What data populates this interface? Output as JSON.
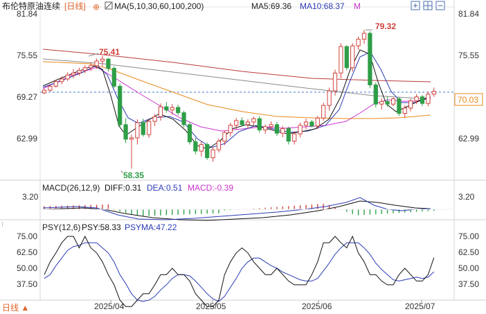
{
  "header": {
    "title": "布伦特原油连续",
    "period_tag": "[日线]",
    "ma_label": "MA(5,10,30,60,100,200)",
    "ma5_label": "MA5:69.36",
    "ma10_label": "MA10:68.37",
    "m_label": "M"
  },
  "price_panel": {
    "right_ticks": [
      "81.84",
      "75.55",
      "69.27",
      "62.99"
    ],
    "left_ticks": [
      "81.84",
      "75.55",
      "69.27",
      "62.99"
    ],
    "current_price": "70.03",
    "high_label": "79.32",
    "mid_high_label": "75.41",
    "low_label": "58.35"
  },
  "macd_panel": {
    "title": "MACD(26,12,9)",
    "diff_label": "DIFF:0.31",
    "dea_label": "DEA:0.51",
    "macd_label": "MACD:-0.39",
    "tick_right": "3.20",
    "tick_left": "3.20"
  },
  "psy_panel": {
    "title": "PSY(12,6)",
    "psy_label": "PSY:58.33",
    "psyma_label": "PSYMA:47.22",
    "ticks": [
      "75.00",
      "62.50",
      "50.00",
      "37.50"
    ]
  },
  "footer": {
    "period_button": "日线 ▲",
    "dates": [
      "2025/04",
      "2025/05",
      "2025/06",
      "2025/07"
    ]
  },
  "colors": {
    "up": "#d0413b",
    "down": "#2e9e47",
    "ma5": "#111111",
    "ma10": "#2b3bb5",
    "ma30": "#cc33cc",
    "ma60": "#e88a1a",
    "ma100": "#8a8a8a",
    "ma200": "#b83a3a",
    "dash": "#3a78c8"
  },
  "chart_data": {
    "type": "candlestick",
    "price_axis": [
      58.35,
      81.84
    ],
    "candles": [
      [
        69.8,
        69.6,
        70.4,
        70.2
      ],
      [
        70.2,
        70.0,
        71.0,
        70.8
      ],
      [
        70.8,
        70.6,
        71.8,
        71.5
      ],
      [
        71.5,
        71.1,
        72.3,
        71.9
      ],
      [
        71.9,
        71.6,
        72.9,
        72.5
      ],
      [
        72.5,
        72.0,
        73.4,
        72.8
      ],
      [
        72.8,
        72.4,
        73.6,
        73.2
      ],
      [
        73.2,
        72.8,
        74.0,
        73.6
      ],
      [
        73.6,
        73.1,
        74.4,
        73.9
      ],
      [
        73.9,
        73.4,
        75.0,
        74.6
      ],
      [
        74.6,
        73.8,
        75.41,
        74.9
      ],
      [
        74.9,
        73.0,
        75.1,
        73.5
      ],
      [
        73.5,
        70.5,
        73.8,
        70.8
      ],
      [
        70.8,
        64.5,
        71.2,
        65.0
      ],
      [
        65.0,
        62.2,
        66.0,
        62.8
      ],
      [
        62.8,
        58.35,
        63.5,
        63.0
      ],
      [
        63.0,
        62.0,
        65.8,
        65.3
      ],
      [
        65.3,
        63.2,
        65.9,
        63.5
      ],
      [
        63.5,
        63.0,
        65.9,
        65.5
      ],
      [
        65.5,
        64.8,
        66.6,
        66.2
      ],
      [
        66.2,
        65.6,
        68.2,
        67.7
      ],
      [
        67.7,
        66.8,
        68.4,
        67.2
      ],
      [
        67.2,
        66.5,
        68.1,
        67.6
      ],
      [
        67.6,
        66.4,
        68.0,
        66.8
      ],
      [
        66.8,
        64.6,
        67.1,
        65.0
      ],
      [
        65.0,
        62.0,
        65.3,
        62.4
      ],
      [
        62.4,
        60.5,
        63.0,
        61.0
      ],
      [
        61.0,
        60.2,
        62.5,
        62.0
      ],
      [
        62.0,
        59.7,
        62.3,
        60.0
      ],
      [
        60.0,
        59.4,
        61.6,
        61.2
      ],
      [
        61.2,
        60.8,
        62.9,
        62.5
      ],
      [
        62.5,
        61.9,
        64.1,
        63.8
      ],
      [
        63.8,
        63.2,
        65.3,
        64.9
      ],
      [
        64.9,
        64.3,
        66.0,
        65.6
      ],
      [
        65.6,
        64.8,
        66.1,
        65.0
      ],
      [
        65.0,
        64.4,
        65.8,
        65.4
      ],
      [
        65.4,
        64.9,
        66.2,
        65.9
      ],
      [
        65.9,
        63.8,
        66.3,
        64.2
      ],
      [
        64.2,
        63.6,
        65.0,
        64.7
      ],
      [
        64.7,
        64.2,
        65.5,
        65.0
      ],
      [
        65.0,
        63.3,
        65.4,
        63.7
      ],
      [
        63.7,
        63.1,
        64.8,
        64.4
      ],
      [
        64.4,
        62.0,
        64.7,
        62.5
      ],
      [
        62.5,
        62.0,
        64.0,
        63.6
      ],
      [
        63.6,
        63.1,
        65.3,
        64.9
      ],
      [
        64.9,
        64.3,
        65.9,
        65.4
      ],
      [
        65.4,
        64.6,
        65.7,
        64.8
      ],
      [
        64.8,
        64.3,
        66.3,
        66.0
      ],
      [
        66.0,
        65.6,
        68.3,
        67.9
      ],
      [
        67.9,
        67.1,
        70.6,
        70.1
      ],
      [
        70.1,
        69.4,
        73.3,
        72.8
      ],
      [
        72.8,
        72.0,
        77.3,
        76.8
      ],
      [
        76.8,
        73.2,
        77.0,
        73.6
      ],
      [
        73.6,
        73.0,
        77.3,
        76.9
      ],
      [
        76.9,
        76.3,
        78.3,
        77.9
      ],
      [
        77.9,
        77.2,
        79.32,
        78.8
      ],
      [
        78.8,
        70.5,
        79.1,
        71.0
      ],
      [
        71.0,
        67.6,
        71.4,
        68.1
      ],
      [
        68.1,
        67.3,
        69.0,
        68.5
      ],
      [
        68.5,
        67.7,
        69.3,
        68.1
      ],
      [
        68.1,
        67.8,
        69.1,
        68.9
      ],
      [
        68.9,
        66.3,
        69.2,
        66.7
      ],
      [
        66.7,
        66.0,
        67.9,
        67.5
      ],
      [
        67.5,
        67.0,
        68.9,
        68.6
      ],
      [
        68.6,
        68.1,
        69.6,
        69.2
      ],
      [
        69.2,
        67.8,
        69.5,
        68.2
      ],
      [
        68.2,
        67.8,
        70.0,
        69.6
      ],
      [
        69.6,
        69.2,
        70.6,
        70.03
      ]
    ],
    "macd_axis": [
      -3.2,
      3.2
    ],
    "psy_axis": [
      25,
      85
    ],
    "psy": [
      45,
      55,
      62,
      70,
      75,
      75,
      66,
      75,
      66,
      62,
      55,
      45,
      37,
      25,
      20,
      20,
      25,
      30,
      30,
      37,
      45,
      45,
      50,
      45,
      45,
      40,
      30,
      25,
      20,
      20,
      25,
      45,
      55,
      62,
      66,
      62,
      55,
      50,
      45,
      45,
      50,
      45,
      40,
      37,
      37,
      37,
      45,
      55,
      70,
      70,
      75,
      70,
      66,
      75,
      62,
      55,
      45,
      45,
      40,
      37,
      37,
      45,
      50,
      45,
      40,
      40,
      45,
      58.33
    ],
    "psyma": [
      42,
      45,
      52,
      58,
      64,
      67,
      68,
      70,
      70,
      70,
      66,
      62,
      55,
      45,
      38,
      30,
      25,
      24,
      25,
      28,
      33,
      37,
      42,
      45,
      45,
      44,
      40,
      35,
      30,
      26,
      24,
      28,
      35,
      42,
      50,
      55,
      58,
      58,
      55,
      52,
      50,
      47,
      45,
      43,
      41,
      40,
      40,
      42,
      48,
      54,
      61,
      66,
      70,
      70,
      70,
      66,
      61,
      54,
      49,
      45,
      41,
      40,
      41,
      42,
      43,
      42,
      43,
      47.22
    ],
    "dates": [
      "2025/04",
      "2025/05",
      "2025/06",
      "2025/07"
    ],
    "series": [
      {
        "name": "MA5",
        "ref": "ma5_label"
      },
      {
        "name": "MA10",
        "ref": "ma10_label"
      }
    ]
  }
}
